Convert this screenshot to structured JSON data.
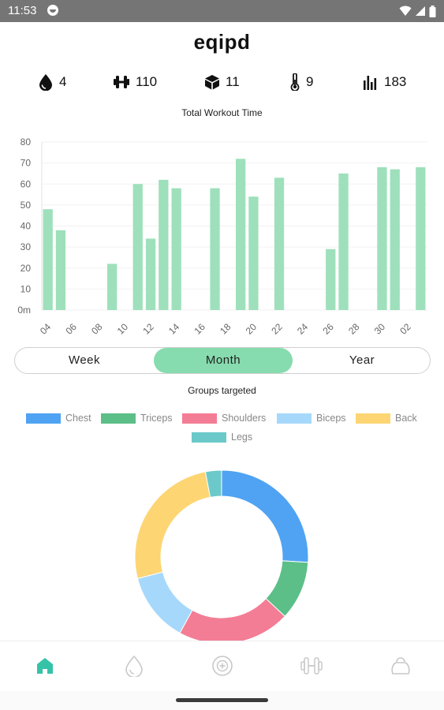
{
  "status_bar": {
    "time": "11:53"
  },
  "app": {
    "title": "eqipd"
  },
  "stats": [
    {
      "icon": "drop-icon",
      "value": "4"
    },
    {
      "icon": "dumbbell-icon",
      "value": "110"
    },
    {
      "icon": "cube-icon",
      "value": "11"
    },
    {
      "icon": "thermometer-icon",
      "value": "9"
    },
    {
      "icon": "bar-chart-icon",
      "value": "183"
    }
  ],
  "workout_chart": {
    "title": "Total Workout Time",
    "chart_data": {
      "type": "bar",
      "title": "Total Workout Time",
      "ylim": [
        0,
        80
      ],
      "yticks": [
        "0m",
        "10",
        "20",
        "30",
        "40",
        "50",
        "60",
        "70",
        "80"
      ],
      "xticks": [
        "04",
        "06",
        "08",
        "10",
        "12",
        "14",
        "16",
        "18",
        "20",
        "22",
        "24",
        "26",
        "28",
        "30",
        "02"
      ],
      "bar_color": "#9ee0bb",
      "bars": [
        {
          "pos": 0,
          "value": 48
        },
        {
          "pos": 1,
          "value": 38
        },
        {
          "pos": 5,
          "value": 22
        },
        {
          "pos": 7,
          "value": 60
        },
        {
          "pos": 8,
          "value": 34
        },
        {
          "pos": 9,
          "value": 62
        },
        {
          "pos": 10,
          "value": 58
        },
        {
          "pos": 13,
          "value": 58
        },
        {
          "pos": 15,
          "value": 72
        },
        {
          "pos": 16,
          "value": 54
        },
        {
          "pos": 18,
          "value": 63
        },
        {
          "pos": 22,
          "value": 29
        },
        {
          "pos": 23,
          "value": 65
        },
        {
          "pos": 26,
          "value": 68
        },
        {
          "pos": 27,
          "value": 67
        },
        {
          "pos": 29,
          "value": 68
        }
      ]
    }
  },
  "period_toggle": {
    "options": [
      "Week",
      "Month",
      "Year"
    ],
    "selected": "Month",
    "active_color": "#86dcae"
  },
  "groups_chart": {
    "title": "Groups targeted",
    "legend": [
      {
        "label": "Chest",
        "color": "#4fa3f2"
      },
      {
        "label": "Triceps",
        "color": "#5cbf88"
      },
      {
        "label": "Shoulders",
        "color": "#f37d94"
      },
      {
        "label": "Biceps",
        "color": "#a6d8fb"
      },
      {
        "label": "Back",
        "color": "#fdd573"
      },
      {
        "label": "Legs",
        "color": "#6cc9c9"
      }
    ],
    "chart_data": {
      "type": "pie",
      "variant": "donut",
      "categories": [
        "Chest",
        "Triceps",
        "Shoulders",
        "Biceps",
        "Back",
        "Legs"
      ],
      "values": [
        26,
        11,
        21,
        13,
        26,
        3
      ],
      "colors": [
        "#4fa3f2",
        "#5cbf88",
        "#f37d94",
        "#a6d8fb",
        "#fdd573",
        "#6cc9c9"
      ]
    }
  },
  "bottom_nav": {
    "items": [
      {
        "name": "home",
        "active": true
      },
      {
        "name": "drop",
        "active": false
      },
      {
        "name": "add-workout",
        "active": false
      },
      {
        "name": "equipment",
        "active": false
      },
      {
        "name": "profile",
        "active": false
      }
    ],
    "active_color": "#35c3a8"
  }
}
